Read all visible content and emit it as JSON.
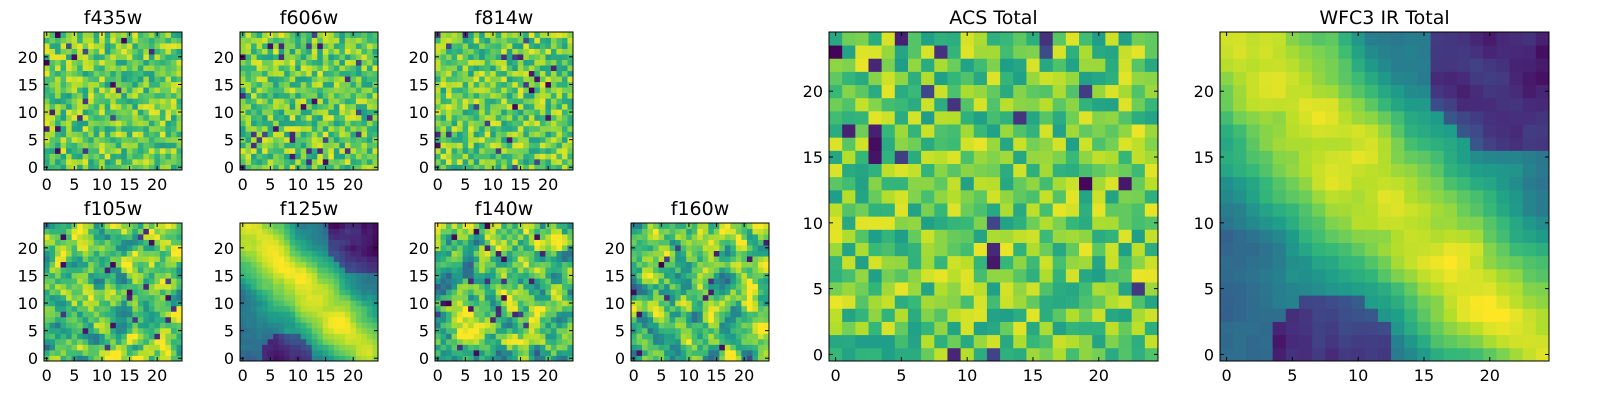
{
  "chart_data": [
    {
      "type": "heatmap",
      "title": "f435w",
      "nx": 25,
      "ny": 25,
      "xlim": [
        0,
        25
      ],
      "ylim": [
        0,
        25
      ],
      "xticks": [
        0,
        5,
        10,
        15,
        20
      ],
      "yticks": [
        0,
        5,
        10,
        15,
        20
      ],
      "colormap": "viridis",
      "pattern": "uniform-noise",
      "seed": 11
    },
    {
      "type": "heatmap",
      "title": "f606w",
      "nx": 25,
      "ny": 25,
      "xlim": [
        0,
        25
      ],
      "ylim": [
        0,
        25
      ],
      "xticks": [
        0,
        5,
        10,
        15,
        20
      ],
      "yticks": [
        0,
        5,
        10,
        15,
        20
      ],
      "colormap": "viridis",
      "pattern": "uniform-noise",
      "seed": 23
    },
    {
      "type": "heatmap",
      "title": "f814w",
      "nx": 25,
      "ny": 25,
      "xlim": [
        0,
        25
      ],
      "ylim": [
        0,
        25
      ],
      "xticks": [
        0,
        5,
        10,
        15,
        20
      ],
      "yticks": [
        0,
        5,
        10,
        15,
        20
      ],
      "colormap": "viridis",
      "pattern": "uniform-noise",
      "seed": 37
    },
    {
      "type": "heatmap",
      "title": "f105w",
      "nx": 25,
      "ny": 25,
      "xlim": [
        0,
        25
      ],
      "ylim": [
        0,
        25
      ],
      "xticks": [
        0,
        5,
        10,
        15,
        20
      ],
      "yticks": [
        0,
        5,
        10,
        15,
        20
      ],
      "colormap": "viridis",
      "pattern": "smooth-noise",
      "seed": 41
    },
    {
      "type": "heatmap",
      "title": "f125w",
      "nx": 25,
      "ny": 25,
      "xlim": [
        0,
        25
      ],
      "ylim": [
        0,
        25
      ],
      "xticks": [
        0,
        5,
        10,
        15,
        20
      ],
      "yticks": [
        0,
        5,
        10,
        15,
        20
      ],
      "colormap": "viridis",
      "pattern": "diagonal-band",
      "seed": 53
    },
    {
      "type": "heatmap",
      "title": "f140w",
      "nx": 25,
      "ny": 25,
      "xlim": [
        0,
        25
      ],
      "ylim": [
        0,
        25
      ],
      "xticks": [
        0,
        5,
        10,
        15,
        20
      ],
      "yticks": [
        0,
        5,
        10,
        15,
        20
      ],
      "colormap": "viridis",
      "pattern": "smooth-noise",
      "seed": 67
    },
    {
      "type": "heatmap",
      "title": "f160w",
      "nx": 25,
      "ny": 25,
      "xlim": [
        0,
        25
      ],
      "ylim": [
        0,
        25
      ],
      "xticks": [
        0,
        5,
        10,
        15,
        20
      ],
      "yticks": [
        0,
        5,
        10,
        15,
        20
      ],
      "colormap": "viridis",
      "pattern": "smooth-noise",
      "seed": 79
    },
    {
      "type": "heatmap",
      "title": "ACS Total",
      "nx": 25,
      "ny": 25,
      "xlim": [
        0,
        25
      ],
      "ylim": [
        0,
        25
      ],
      "xticks": [
        0,
        5,
        10,
        15,
        20
      ],
      "yticks": [
        0,
        5,
        10,
        15,
        20
      ],
      "colormap": "viridis",
      "pattern": "uniform-noise",
      "seed": 97
    },
    {
      "type": "heatmap",
      "title": "WFC3 IR Total",
      "nx": 25,
      "ny": 25,
      "xlim": [
        0,
        25
      ],
      "ylim": [
        0,
        25
      ],
      "xticks": [
        0,
        5,
        10,
        15,
        20
      ],
      "yticks": [
        0,
        5,
        10,
        15,
        20
      ],
      "colormap": "viridis",
      "pattern": "diagonal-band",
      "seed": 101
    }
  ]
}
